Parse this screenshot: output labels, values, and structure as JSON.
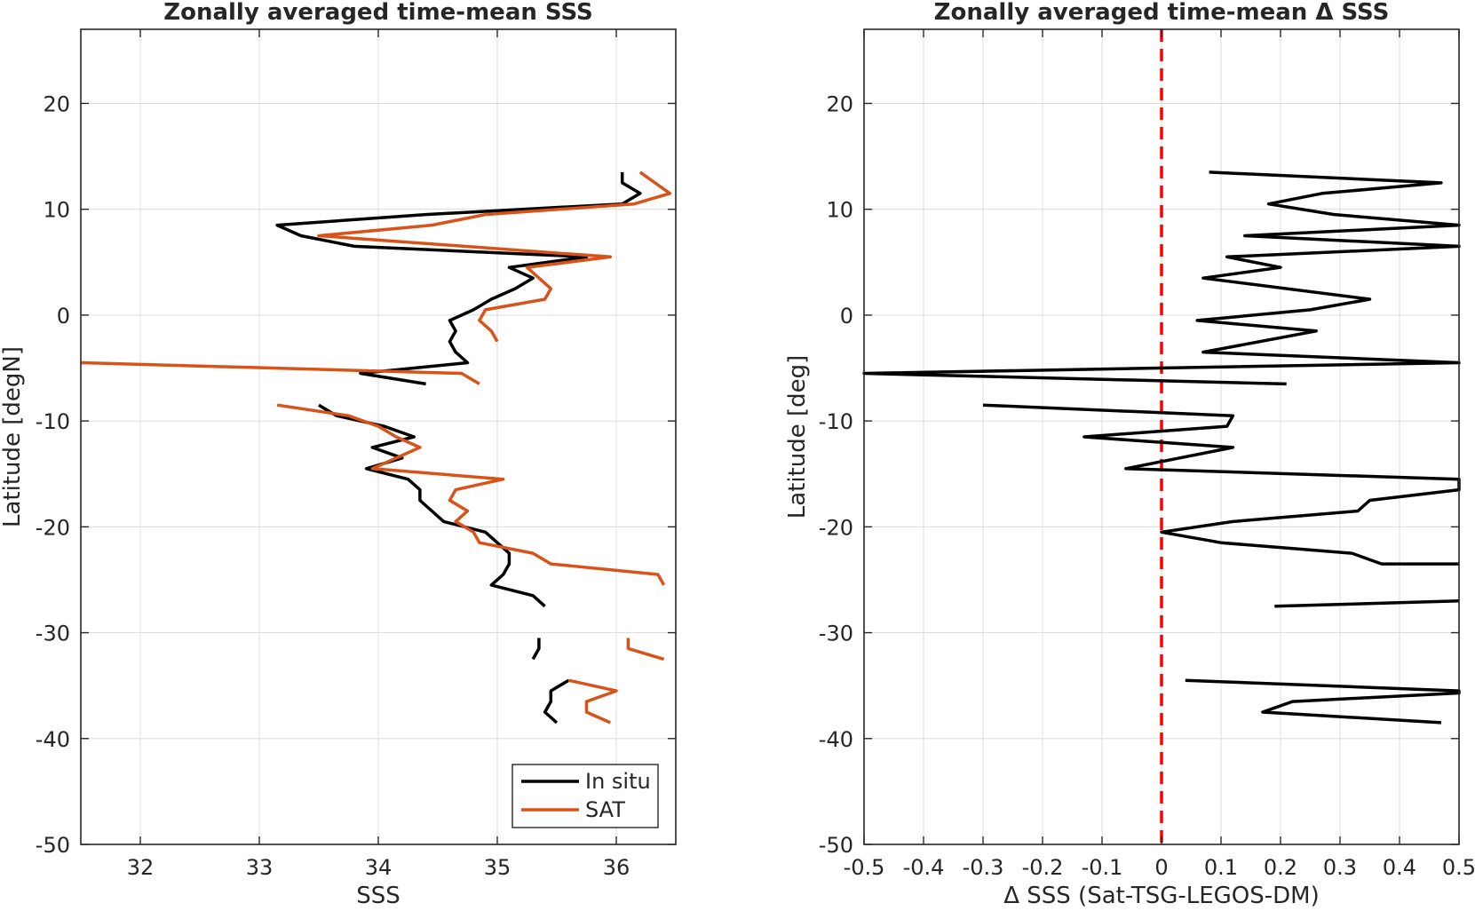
{
  "chart_data": [
    {
      "type": "line",
      "title": "Zonally averaged time-mean SSS",
      "xlabel": "SSS",
      "ylabel": "Latitude [degN]",
      "xlim": [
        31.5,
        36.5
      ],
      "ylim": [
        -50,
        27
      ],
      "xticks": [
        32,
        33,
        34,
        35,
        36
      ],
      "yticks": [
        -50,
        -40,
        -30,
        -20,
        -10,
        0,
        10,
        20
      ],
      "grid": true,
      "legend_position": "bottom-right",
      "series": [
        {
          "name": "In situ",
          "color": "#000000",
          "segments": [
            [
              [
                36.05,
                13.5
              ],
              [
                36.05,
                12.5
              ],
              [
                36.2,
                11.5
              ],
              [
                36.05,
                10.5
              ],
              [
                34.4,
                9.5
              ],
              [
                33.15,
                8.5
              ],
              [
                33.35,
                7.5
              ],
              [
                33.8,
                6.5
              ],
              [
                35.75,
                5.5
              ],
              [
                35.1,
                4.5
              ],
              [
                35.3,
                3.5
              ],
              [
                35.15,
                2.5
              ],
              [
                34.95,
                1.5
              ],
              [
                34.8,
                0.5
              ],
              [
                34.6,
                -0.5
              ],
              [
                34.65,
                -1.5
              ],
              [
                34.6,
                -2.5
              ],
              [
                34.65,
                -3.5
              ],
              [
                34.75,
                -4.5
              ],
              [
                33.85,
                -5.5
              ],
              [
                34.4,
                -6.5
              ]
            ],
            [
              [
                33.5,
                -8.5
              ],
              [
                33.65,
                -9.5
              ],
              [
                34.05,
                -10.5
              ],
              [
                34.3,
                -11.5
              ],
              [
                33.95,
                -12.5
              ],
              [
                34.2,
                -13.5
              ],
              [
                33.9,
                -14.5
              ],
              [
                34.25,
                -15.5
              ],
              [
                34.35,
                -16.5
              ],
              [
                34.35,
                -17.5
              ],
              [
                34.45,
                -18.5
              ],
              [
                34.55,
                -19.5
              ],
              [
                34.9,
                -20.5
              ],
              [
                35.0,
                -21.5
              ],
              [
                35.1,
                -22.5
              ],
              [
                35.1,
                -23.5
              ],
              [
                35.05,
                -24.5
              ],
              [
                34.95,
                -25.5
              ],
              [
                35.3,
                -26.5
              ],
              [
                35.4,
                -27.5
              ]
            ],
            [
              [
                35.35,
                -30.5
              ],
              [
                35.35,
                -31.5
              ],
              [
                35.3,
                -32.5
              ]
            ],
            [
              [
                35.6,
                -34.5
              ],
              [
                35.45,
                -35.5
              ],
              [
                35.45,
                -36.5
              ],
              [
                35.4,
                -37.5
              ],
              [
                35.5,
                -38.5
              ]
            ]
          ]
        },
        {
          "name": "SAT",
          "color": "#d95319",
          "segments": [
            [
              [
                36.2,
                13.5
              ],
              [
                36.45,
                11.5
              ],
              [
                36.15,
                10.5
              ],
              [
                34.9,
                9.5
              ],
              [
                34.45,
                8.5
              ],
              [
                33.5,
                7.5
              ],
              [
                35.95,
                5.5
              ],
              [
                35.25,
                4.5
              ],
              [
                35.45,
                2.5
              ],
              [
                35.4,
                1.5
              ],
              [
                34.9,
                0.5
              ],
              [
                34.85,
                -0.5
              ],
              [
                34.95,
                -1.5
              ],
              [
                35.0,
                -2.5
              ]
            ],
            [
              [
                31.5,
                -4.5
              ],
              [
                34.7,
                -5.5
              ],
              [
                34.85,
                -6.5
              ]
            ],
            [
              [
                33.15,
                -8.5
              ],
              [
                33.75,
                -9.5
              ],
              [
                34.0,
                -10.5
              ],
              [
                34.15,
                -11.5
              ],
              [
                34.35,
                -12.5
              ],
              [
                33.95,
                -14.5
              ],
              [
                35.05,
                -15.5
              ],
              [
                34.65,
                -16.5
              ],
              [
                34.6,
                -17.5
              ],
              [
                34.75,
                -18.5
              ],
              [
                34.65,
                -19.5
              ],
              [
                34.8,
                -20.5
              ],
              [
                34.85,
                -21.5
              ],
              [
                35.3,
                -22.5
              ],
              [
                35.45,
                -23.5
              ],
              [
                36.35,
                -24.5
              ],
              [
                36.4,
                -25.5
              ]
            ],
            [
              [
                36.1,
                -30.5
              ],
              [
                36.1,
                -31.5
              ],
              [
                36.4,
                -32.5
              ]
            ],
            [
              [
                35.6,
                -34.5
              ],
              [
                36.0,
                -35.5
              ],
              [
                35.75,
                -36.5
              ],
              [
                35.75,
                -37.5
              ],
              [
                35.95,
                -38.5
              ]
            ]
          ]
        }
      ]
    },
    {
      "type": "line",
      "title": "Zonally averaged time-mean Δ SSS",
      "xlabel": "Δ SSS (Sat-TSG-LEGOS-DM)",
      "ylabel": "Latitude [deg]",
      "xlim": [
        -0.5,
        0.5
      ],
      "ylim": [
        -50,
        27
      ],
      "xticks": [
        -0.5,
        -0.4,
        -0.3,
        -0.2,
        -0.1,
        0,
        0.1,
        0.2,
        0.3,
        0.4,
        0.5
      ],
      "xticklabels": [
        "-0.5",
        "-0.4",
        "-0.3",
        "-0.2",
        "-0.1",
        "0",
        "0.1",
        "0.2",
        "0.3",
        "0.4",
        "0.5"
      ],
      "yticks": [
        -50,
        -40,
        -30,
        -20,
        -10,
        0,
        10,
        20
      ],
      "grid": true,
      "reference_line": {
        "x": 0,
        "color": "#ff0000",
        "style": "dashed"
      },
      "series": [
        {
          "name": "",
          "color": "#000000",
          "segments": [
            [
              [
                0.08,
                13.5
              ],
              [
                0.47,
                12.5
              ],
              [
                0.27,
                11.5
              ],
              [
                0.18,
                10.5
              ],
              [
                0.29,
                9.5
              ],
              [
                0.5,
                8.5
              ],
              [
                0.14,
                7.5
              ],
              [
                0.5,
                6.5
              ],
              [
                0.11,
                5.5
              ],
              [
                0.2,
                4.5
              ],
              [
                0.07,
                3.5
              ],
              [
                0.35,
                1.5
              ],
              [
                0.25,
                0.5
              ],
              [
                0.06,
                -0.5
              ],
              [
                0.26,
                -1.5
              ],
              [
                0.07,
                -3.5
              ],
              [
                0.5,
                -4.5
              ],
              [
                -0.5,
                -5.5
              ],
              [
                0.21,
                -6.5
              ]
            ],
            [
              [
                -0.3,
                -8.5
              ],
              [
                0.12,
                -9.5
              ],
              [
                0.11,
                -10.5
              ],
              [
                -0.13,
                -11.5
              ],
              [
                0.12,
                -12.5
              ],
              [
                -0.06,
                -14.5
              ],
              [
                0.5,
                -15.5
              ],
              [
                0.5,
                -16.5
              ],
              [
                0.35,
                -17.5
              ],
              [
                0.33,
                -18.5
              ],
              [
                0.12,
                -19.5
              ],
              [
                0.0,
                -20.5
              ],
              [
                0.1,
                -21.5
              ],
              [
                0.32,
                -22.5
              ],
              [
                0.37,
                -23.5
              ],
              [
                0.5,
                -23.5
              ]
            ],
            [
              [
                0.19,
                -27.5
              ],
              [
                0.5,
                -27.0
              ]
            ],
            [
              [
                0.04,
                -34.5
              ],
              [
                0.5,
                -35.5
              ],
              [
                0.5,
                -35.7
              ],
              [
                0.22,
                -36.5
              ],
              [
                0.17,
                -37.5
              ],
              [
                0.47,
                -38.5
              ]
            ]
          ]
        }
      ]
    }
  ],
  "legend": {
    "entries": [
      {
        "label": "In situ",
        "color": "#000000"
      },
      {
        "label": "SAT",
        "color": "#d95319"
      }
    ]
  }
}
